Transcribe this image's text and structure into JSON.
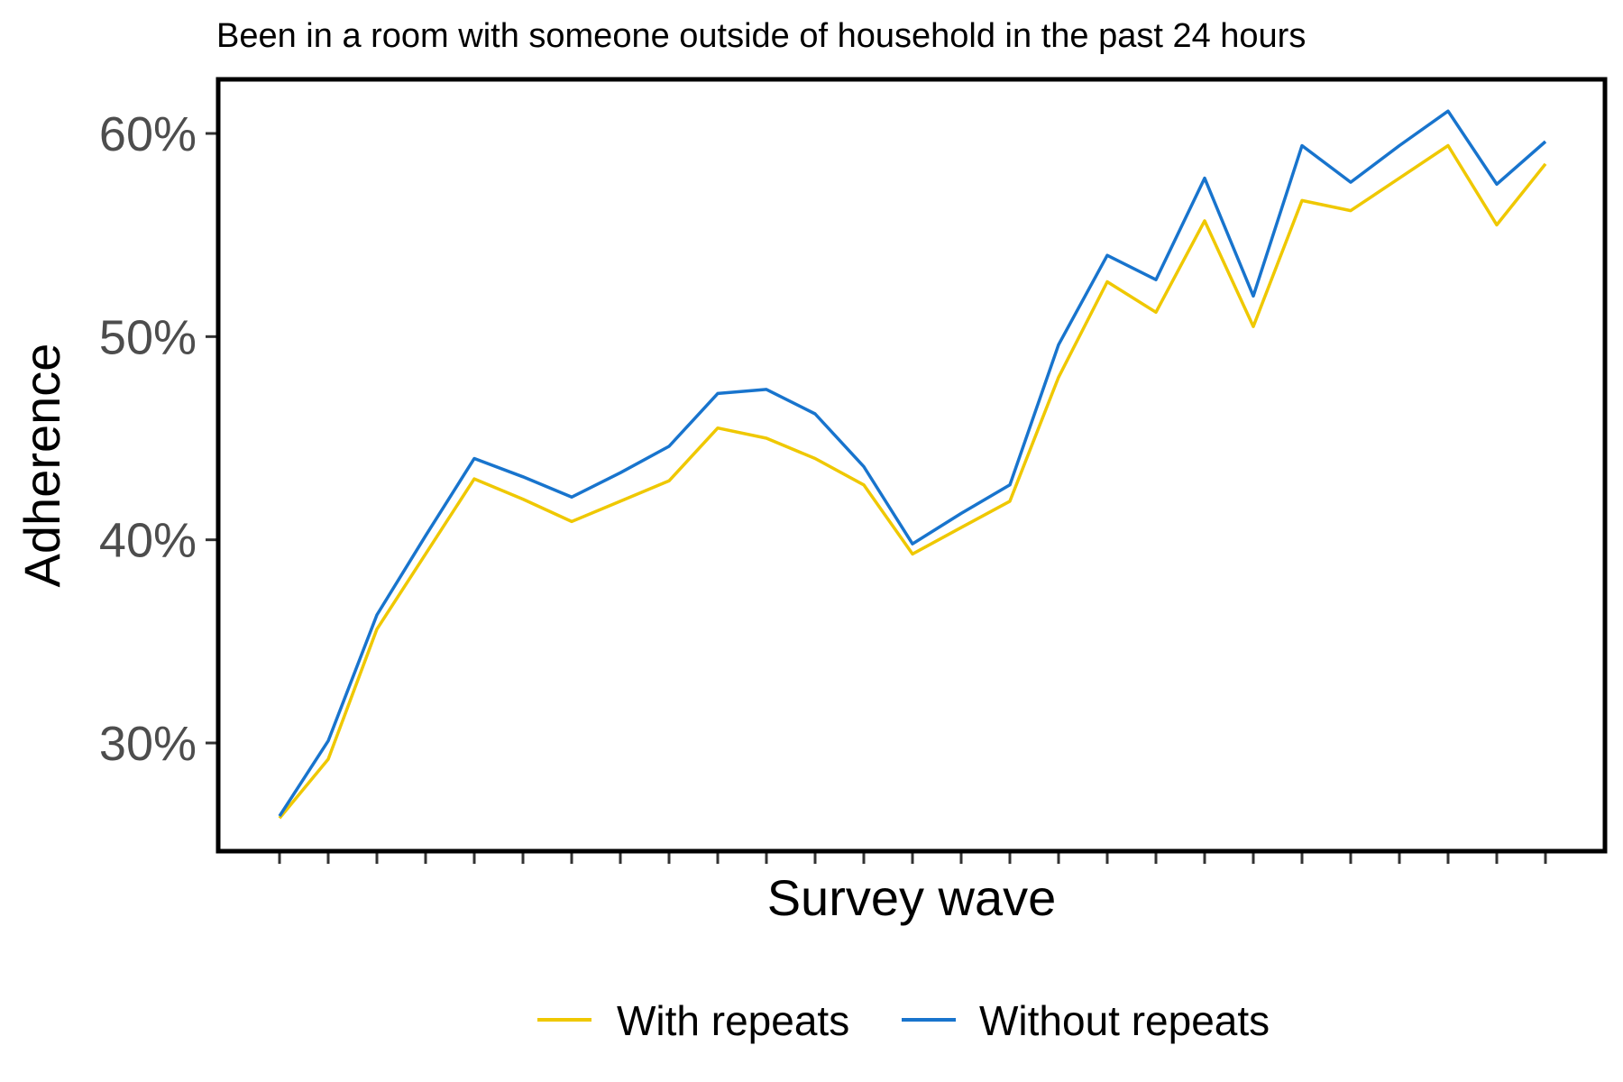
{
  "chart_data": {
    "type": "line",
    "title": "Been in a room with someone outside of household in the past 24 hours",
    "xlabel": "Survey wave",
    "ylabel": "Adherence",
    "x": [
      1,
      2,
      3,
      4,
      5,
      6,
      7,
      8,
      9,
      10,
      11,
      12,
      13,
      14,
      15,
      16,
      17,
      18,
      19,
      20,
      21,
      22,
      23,
      24,
      25,
      26,
      27
    ],
    "ylim": [
      0.25,
      0.63
    ],
    "yticks": [
      0.3,
      0.4,
      0.5,
      0.6
    ],
    "ytick_labels": [
      "30%",
      "40%",
      "50%",
      "60%"
    ],
    "grid": false,
    "legend_position": "bottom",
    "series": [
      {
        "name": "With repeats",
        "color": "#EFC800",
        "values": [
          0.263,
          0.292,
          0.356,
          0.393,
          0.43,
          0.42,
          0.409,
          0.419,
          0.429,
          0.455,
          0.45,
          0.44,
          0.427,
          0.393,
          0.406,
          0.419,
          0.48,
          0.527,
          0.512,
          0.557,
          0.505,
          0.567,
          0.562,
          0.578,
          0.594,
          0.555,
          0.585
        ]
      },
      {
        "name": "Without repeats",
        "color": "#1874CD",
        "values": [
          0.264,
          0.301,
          0.363,
          0.402,
          0.44,
          0.431,
          0.421,
          0.433,
          0.446,
          0.472,
          0.474,
          0.462,
          0.436,
          0.398,
          0.413,
          0.427,
          0.496,
          0.54,
          0.528,
          0.578,
          0.52,
          0.594,
          0.576,
          0.594,
          0.611,
          0.575,
          0.596
        ]
      }
    ]
  }
}
